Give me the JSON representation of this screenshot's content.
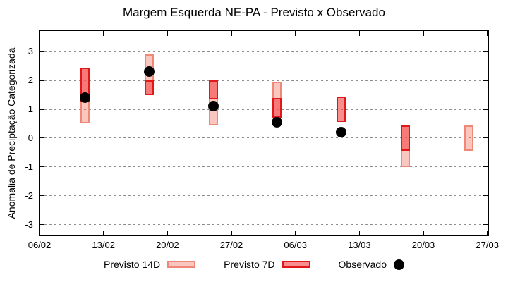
{
  "chart_data": {
    "type": "candlestick-forecast",
    "title": "Margem Esquerda NE-PA - Previsto x Observado",
    "ylabel": "Anomalia de Preciptação Categorizada",
    "x_ticks": [
      {
        "day": 0,
        "label": "06/02"
      },
      {
        "day": 7,
        "label": "13/02"
      },
      {
        "day": 14,
        "label": "20/02"
      },
      {
        "day": 21,
        "label": "27/02"
      },
      {
        "day": 28,
        "label": "06/03"
      },
      {
        "day": 35,
        "label": "13/03"
      },
      {
        "day": 42,
        "label": "20/03"
      },
      {
        "day": 49,
        "label": "27/03"
      }
    ],
    "y_ticks": [
      3,
      2,
      1,
      0,
      -1,
      -2,
      -3
    ],
    "xlim_days": [
      0,
      49.1
    ],
    "ylim": [
      -3.37,
      3.71
    ],
    "grid": "horizontal-dotted",
    "legend_position": "bottom",
    "points": [
      {
        "date": "11/02",
        "day": 5,
        "previsto_14d": [
          0.5,
          2.45
        ],
        "previsto_7d": [
          1.25,
          2.45
        ],
        "observado": 1.4
      },
      {
        "date": "18/02",
        "day": 12,
        "previsto_14d": [
          1.5,
          2.9
        ],
        "previsto_7d": [
          1.5,
          2.0
        ],
        "observado": 2.3
      },
      {
        "date": "25/02",
        "day": 19,
        "previsto_14d": [
          0.45,
          2.0
        ],
        "previsto_7d": [
          1.35,
          2.0
        ],
        "observado": 1.1
      },
      {
        "date": "04/03",
        "day": 26,
        "previsto_14d": [
          0.7,
          1.95
        ],
        "previsto_7d": [
          0.7,
          1.4
        ],
        "observado": 0.55
      },
      {
        "date": "11/03",
        "day": 33,
        "previsto_14d": null,
        "previsto_7d": [
          0.55,
          1.45
        ],
        "observado": 0.2
      },
      {
        "date": "18/03",
        "day": 40,
        "previsto_14d": [
          -1.0,
          0.45
        ],
        "previsto_7d": [
          -0.45,
          0.45
        ],
        "observado": null
      },
      {
        "date": "25/03",
        "day": 47,
        "previsto_14d": [
          -0.45,
          0.45
        ],
        "previsto_7d": null,
        "observado": null
      }
    ],
    "legend": [
      {
        "label": "Previsto 14D",
        "swatch": "box-14d"
      },
      {
        "label": "Previsto 7D",
        "swatch": "box-7d"
      },
      {
        "label": "Observado",
        "swatch": "dot"
      }
    ],
    "colors": {
      "fill_14d": "rgba(243,112,98,0.40)",
      "border_14d": "#f08878",
      "fill_7d": "rgba(246,82,82,0.65)",
      "border_7d": "#e21718",
      "observado": "#000000",
      "grid": "#8f8f8f",
      "frame": "#000000"
    }
  }
}
